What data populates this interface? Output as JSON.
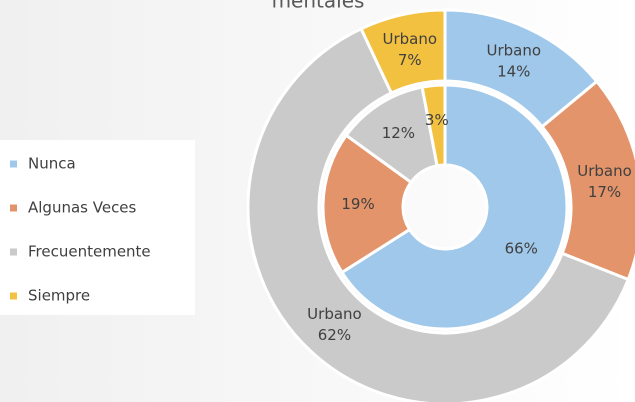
{
  "chart_data": {
    "type": "donut",
    "title": "mentales",
    "categories": [
      "Nunca",
      "Algunas Veces",
      "Frecuentemente",
      "Siempre"
    ],
    "colors": [
      "#9fc8ea",
      "#e3946a",
      "#cacaca",
      "#f3c140"
    ],
    "series": [
      {
        "name": "Urbano",
        "values": [
          14,
          17,
          62,
          7
        ],
        "value_labels": [
          "14%",
          "17%",
          "62%",
          "7%"
        ]
      },
      {
        "values": [
          66,
          19,
          12,
          3
        ],
        "value_labels": [
          "66%",
          "19%",
          "12%",
          "3%"
        ]
      }
    ],
    "legend": "left"
  }
}
